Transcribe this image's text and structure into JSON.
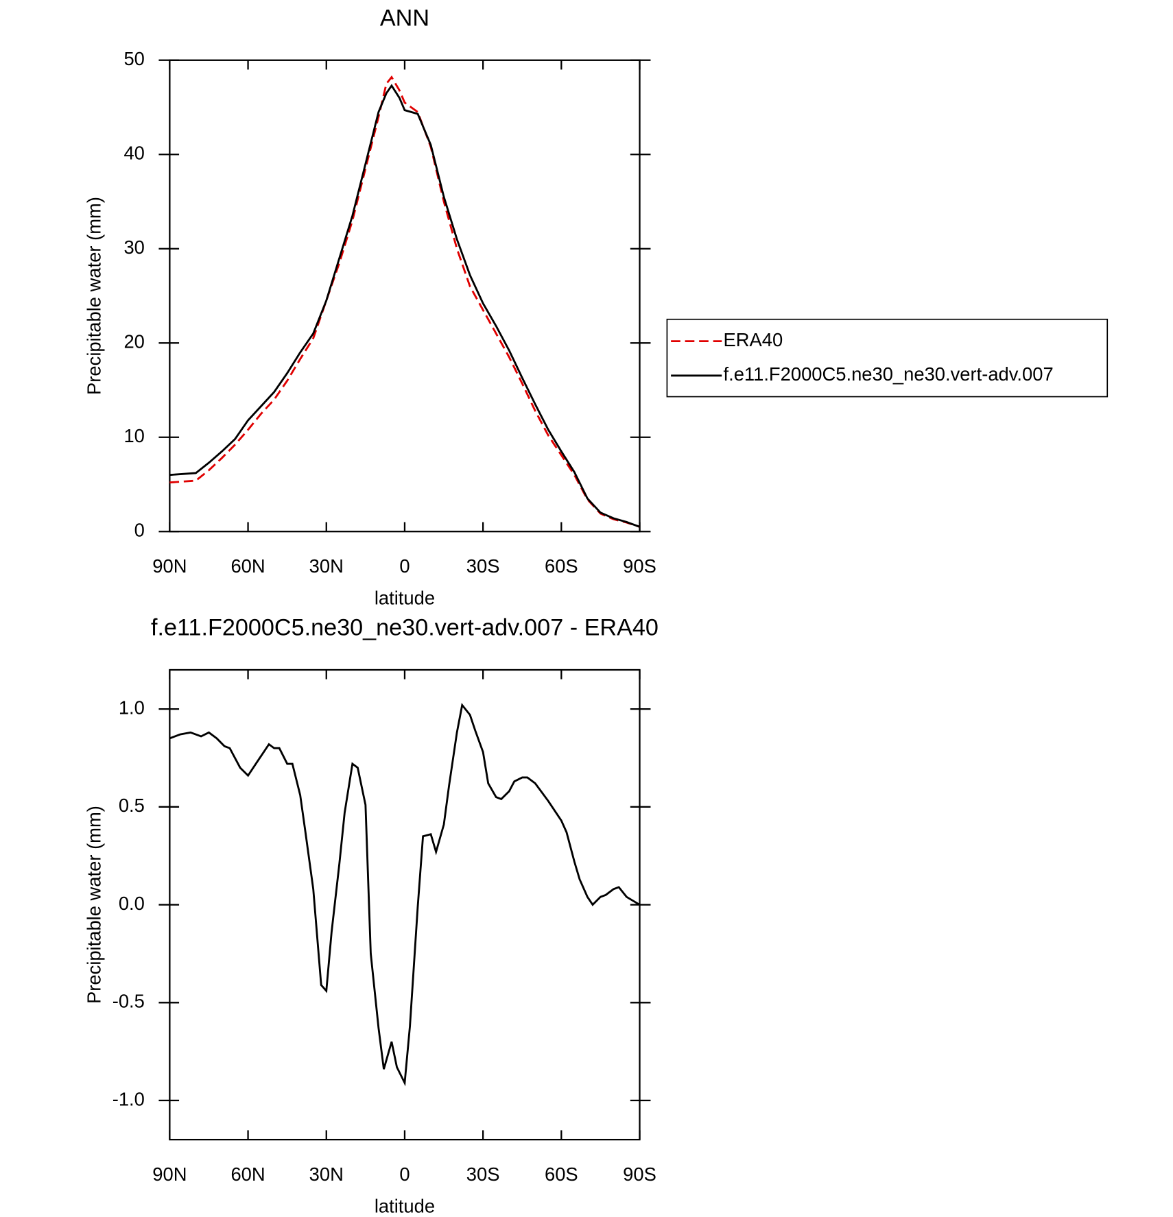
{
  "chart_data": [
    {
      "type": "line",
      "title": "ANN",
      "x_label": "latitude",
      "y_label": "Precipitable water (mm)",
      "x": [
        90,
        85,
        80,
        75,
        70,
        65,
        60,
        55,
        50,
        45,
        40,
        35,
        30,
        25,
        20,
        15,
        10,
        7,
        5,
        2,
        0,
        -5,
        -10,
        -15,
        -20,
        -25,
        -30,
        -35,
        -40,
        -45,
        -50,
        -55,
        -60,
        -65,
        -70,
        -75,
        -80,
        -85,
        -90
      ],
      "series": [
        {
          "name": "ERA40",
          "color": "#e00000",
          "line_style": "dashed",
          "values": [
            5.2,
            5.3,
            5.4,
            6.5,
            7.8,
            9.2,
            10.8,
            12.5,
            14,
            16,
            18.3,
            20.5,
            24.5,
            28.5,
            33,
            38.5,
            44,
            47.5,
            48.2,
            46.8,
            45.5,
            44.5,
            40.8,
            35,
            30,
            26,
            23.5,
            21,
            18.5,
            15.7,
            12.8,
            10.2,
            8.1,
            6,
            3.4,
            1.9,
            1.3,
            0.95,
            0.5
          ]
        },
        {
          "name": "f.e11.F2000C5.ne30_ne30.vert-adv.007",
          "color": "#000000",
          "line_style": "solid",
          "values": [
            6,
            6.1,
            6.2,
            7.3,
            8.5,
            9.8,
            11.8,
            13.3,
            14.8,
            16.8,
            19,
            21,
            24.5,
            29,
            33.5,
            39,
            44.5,
            46.5,
            47.3,
            46,
            44.7,
            44.3,
            41,
            35.5,
            31,
            27.2,
            24.2,
            21.8,
            19.2,
            16.3,
            13.5,
            10.8,
            8.5,
            6.3,
            3.5,
            2,
            1.4,
            1,
            0.5
          ]
        }
      ],
      "xlim": [
        90,
        -90
      ],
      "xticks": [
        {
          "value": 90,
          "label": "90N"
        },
        {
          "value": 60,
          "label": "60N"
        },
        {
          "value": 30,
          "label": "30N"
        },
        0,
        {
          "value": -30,
          "label": "30S"
        },
        {
          "value": -60,
          "label": "60S"
        },
        {
          "value": -90,
          "label": "90S"
        }
      ],
      "ylim": [
        0,
        50
      ],
      "yticks": [
        0,
        10,
        20,
        30,
        40,
        50
      ],
      "legend": "right"
    },
    {
      "type": "line",
      "title": "f.e11.F2000C5.ne30_ne30.vert-adv.007 - ERA40",
      "x_label": "latitude",
      "y_label": "Precipitable water (mm)",
      "x": [
        90,
        86,
        82,
        78,
        75,
        72,
        69,
        67,
        63,
        60,
        56,
        52,
        50,
        48,
        45,
        43,
        40,
        38,
        35,
        32,
        30,
        28,
        25,
        23,
        20,
        18,
        15,
        13,
        10,
        8,
        5,
        3,
        0,
        -2,
        -5,
        -7,
        -10,
        -12,
        -15,
        -17,
        -20,
        -22,
        -25,
        -27,
        -30,
        -32,
        -35,
        -37,
        -40,
        -42,
        -45,
        -47,
        -50,
        -55,
        -60,
        -62,
        -65,
        -67,
        -70,
        -72,
        -75,
        -77,
        -80,
        -82,
        -85,
        -90
      ],
      "series": [
        {
          "name": null,
          "color": "#000000",
          "line_style": "solid",
          "values": [
            0.85,
            0.87,
            0.88,
            0.86,
            0.88,
            0.85,
            0.81,
            0.8,
            0.7,
            0.66,
            0.74,
            0.82,
            0.8,
            0.8,
            0.72,
            0.72,
            0.56,
            0.37,
            0.08,
            -0.41,
            -0.44,
            -0.14,
            0.21,
            0.47,
            0.72,
            0.7,
            0.51,
            -0.25,
            -0.63,
            -0.84,
            -0.7,
            -0.83,
            -0.91,
            -0.62,
            -0.01,
            0.35,
            0.36,
            0.27,
            0.41,
            0.61,
            0.88,
            1.02,
            0.97,
            0.89,
            0.78,
            0.62,
            0.55,
            0.54,
            0.58,
            0.63,
            0.65,
            0.65,
            0.62,
            0.53,
            0.43,
            0.37,
            0.22,
            0.13,
            0.04,
            0,
            0.04,
            0.05,
            0.08,
            0.09,
            0.04,
            0
          ]
        }
      ],
      "xlim": [
        90,
        -90
      ],
      "xticks": [
        {
          "value": 90,
          "label": "90N"
        },
        {
          "value": 60,
          "label": "60N"
        },
        {
          "value": 30,
          "label": "30N"
        },
        0,
        {
          "value": -30,
          "label": "30S"
        },
        {
          "value": -60,
          "label": "60S"
        },
        {
          "value": -90,
          "label": "90S"
        }
      ],
      "ylim": [
        -1.2,
        1.2
      ],
      "yticks": [
        {
          "value": -1,
          "label": "-1.0"
        },
        {
          "value": -0.5,
          "label": "-0.5"
        },
        {
          "value": 0,
          "label": "0.0"
        },
        {
          "value": 0.5,
          "label": "0.5"
        },
        {
          "value": 1,
          "label": "1.0"
        }
      ]
    }
  ]
}
